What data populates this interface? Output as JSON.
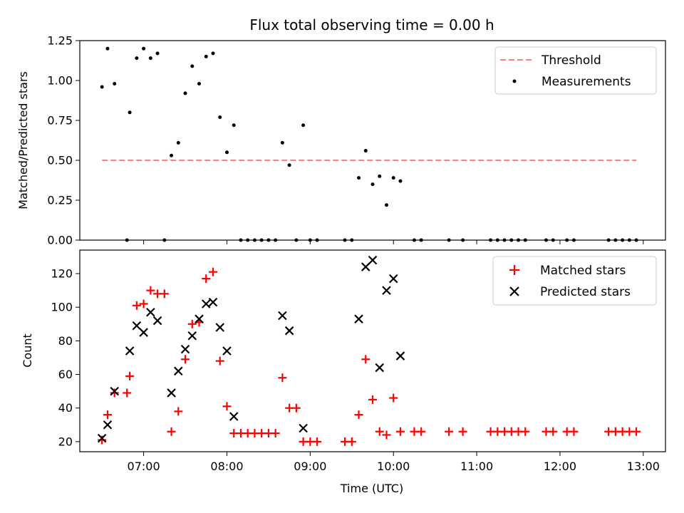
{
  "chart_data": [
    {
      "type": "scatter",
      "title": "Flux total observing time = 0.00 h",
      "xlabel": "",
      "ylabel": "Matched/Predicted stars",
      "ylim": [
        0,
        1.25
      ],
      "yticks": [
        "0.00",
        "0.25",
        "0.50",
        "0.75",
        "1.00",
        "1.25"
      ],
      "xlim": [
        "06:14",
        "13:16"
      ],
      "legend_position": "top-right",
      "threshold": {
        "name": "Threshold",
        "value": 0.5,
        "x_start": "06:30",
        "x_end": "12:55",
        "color": "#ff7f7f",
        "style": "dashed"
      },
      "series": [
        {
          "name": "Measurements",
          "color": "#000000",
          "marker": "dot",
          "points": [
            [
              "06:30",
              0.96
            ],
            [
              "06:34",
              1.2
            ],
            [
              "06:39",
              0.98
            ],
            [
              "06:48",
              0.0
            ],
            [
              "06:50",
              0.8
            ],
            [
              "06:55",
              1.14
            ],
            [
              "07:00",
              1.2
            ],
            [
              "07:05",
              1.14
            ],
            [
              "07:10",
              1.17
            ],
            [
              "07:15",
              0.0
            ],
            [
              "07:20",
              0.53
            ],
            [
              "07:25",
              0.61
            ],
            [
              "07:30",
              0.92
            ],
            [
              "07:35",
              1.09
            ],
            [
              "07:40",
              0.98
            ],
            [
              "07:45",
              1.15
            ],
            [
              "07:50",
              1.17
            ],
            [
              "07:55",
              0.77
            ],
            [
              "08:00",
              0.55
            ],
            [
              "08:05",
              0.72
            ],
            [
              "08:10",
              0.0
            ],
            [
              "08:15",
              0.0
            ],
            [
              "08:20",
              0.0
            ],
            [
              "08:25",
              0.0
            ],
            [
              "08:30",
              0.0
            ],
            [
              "08:35",
              0.0
            ],
            [
              "08:40",
              0.61
            ],
            [
              "08:45",
              0.47
            ],
            [
              "08:50",
              0.0
            ],
            [
              "08:55",
              0.72
            ],
            [
              "09:00",
              0.0
            ],
            [
              "09:05",
              0.0
            ],
            [
              "09:25",
              0.0
            ],
            [
              "09:30",
              0.0
            ],
            [
              "09:35",
              0.39
            ],
            [
              "09:40",
              0.56
            ],
            [
              "09:45",
              0.35
            ],
            [
              "09:50",
              0.4
            ],
            [
              "09:55",
              0.22
            ],
            [
              "10:00",
              0.39
            ],
            [
              "10:05",
              0.37
            ],
            [
              "10:15",
              0.0
            ],
            [
              "10:20",
              0.0
            ],
            [
              "10:40",
              0.0
            ],
            [
              "10:50",
              0.0
            ],
            [
              "11:10",
              0.0
            ],
            [
              "11:15",
              0.0
            ],
            [
              "11:20",
              0.0
            ],
            [
              "11:25",
              0.0
            ],
            [
              "11:30",
              0.0
            ],
            [
              "11:35",
              0.0
            ],
            [
              "11:50",
              0.0
            ],
            [
              "11:55",
              0.0
            ],
            [
              "12:05",
              0.0
            ],
            [
              "12:10",
              0.0
            ],
            [
              "12:35",
              0.0
            ],
            [
              "12:40",
              0.0
            ],
            [
              "12:45",
              0.0
            ],
            [
              "12:50",
              0.0
            ],
            [
              "12:55",
              0.0
            ]
          ]
        }
      ]
    },
    {
      "type": "scatter",
      "title": "",
      "xlabel": "Time (UTC)",
      "ylabel": "Count",
      "ylim": [
        14,
        134
      ],
      "yticks": [
        "20",
        "40",
        "60",
        "80",
        "100",
        "120"
      ],
      "xlim": [
        "06:14",
        "13:16"
      ],
      "xticks": [
        "07:00",
        "08:00",
        "09:00",
        "10:00",
        "11:00",
        "12:00",
        "13:00"
      ],
      "legend_position": "top-right",
      "series": [
        {
          "name": "Matched stars",
          "color": "#ff0000",
          "marker": "plus",
          "points": [
            [
              "06:30",
              21
            ],
            [
              "06:34",
              36
            ],
            [
              "06:39",
              49
            ],
            [
              "06:48",
              49
            ],
            [
              "06:50",
              59
            ],
            [
              "06:55",
              101
            ],
            [
              "07:00",
              102
            ],
            [
              "07:05",
              110
            ],
            [
              "07:10",
              108
            ],
            [
              "07:15",
              108
            ],
            [
              "07:20",
              26
            ],
            [
              "07:25",
              38
            ],
            [
              "07:30",
              69
            ],
            [
              "07:35",
              90
            ],
            [
              "07:40",
              91
            ],
            [
              "07:45",
              117
            ],
            [
              "07:50",
              121
            ],
            [
              "07:55",
              68
            ],
            [
              "08:00",
              41
            ],
            [
              "08:05",
              25
            ],
            [
              "08:10",
              25
            ],
            [
              "08:15",
              25
            ],
            [
              "08:20",
              25
            ],
            [
              "08:25",
              25
            ],
            [
              "08:30",
              25
            ],
            [
              "08:35",
              25
            ],
            [
              "08:40",
              58
            ],
            [
              "08:45",
              40
            ],
            [
              "08:50",
              40
            ],
            [
              "08:55",
              20
            ],
            [
              "09:00",
              20
            ],
            [
              "09:05",
              20
            ],
            [
              "09:25",
              20
            ],
            [
              "09:30",
              20
            ],
            [
              "09:35",
              36
            ],
            [
              "09:40",
              69
            ],
            [
              "09:45",
              45
            ],
            [
              "09:50",
              26
            ],
            [
              "09:55",
              24
            ],
            [
              "10:00",
              46
            ],
            [
              "10:05",
              26
            ],
            [
              "10:15",
              26
            ],
            [
              "10:20",
              26
            ],
            [
              "10:40",
              26
            ],
            [
              "10:50",
              26
            ],
            [
              "11:10",
              26
            ],
            [
              "11:15",
              26
            ],
            [
              "11:20",
              26
            ],
            [
              "11:25",
              26
            ],
            [
              "11:30",
              26
            ],
            [
              "11:35",
              26
            ],
            [
              "11:50",
              26
            ],
            [
              "11:55",
              26
            ],
            [
              "12:05",
              26
            ],
            [
              "12:10",
              26
            ],
            [
              "12:35",
              26
            ],
            [
              "12:40",
              26
            ],
            [
              "12:45",
              26
            ],
            [
              "12:50",
              26
            ],
            [
              "12:55",
              26
            ]
          ]
        },
        {
          "name": "Predicted stars",
          "color": "#000000",
          "marker": "x",
          "points": [
            [
              "06:30",
              22
            ],
            [
              "06:34",
              30
            ],
            [
              "06:39",
              50
            ],
            [
              "06:50",
              74
            ],
            [
              "06:55",
              89
            ],
            [
              "07:00",
              85
            ],
            [
              "07:05",
              97
            ],
            [
              "07:10",
              92
            ],
            [
              "07:20",
              49
            ],
            [
              "07:25",
              62
            ],
            [
              "07:30",
              75
            ],
            [
              "07:35",
              83
            ],
            [
              "07:40",
              93
            ],
            [
              "07:45",
              102
            ],
            [
              "07:50",
              103
            ],
            [
              "07:55",
              88
            ],
            [
              "08:00",
              74
            ],
            [
              "08:05",
              35
            ],
            [
              "08:40",
              95
            ],
            [
              "08:45",
              86
            ],
            [
              "08:55",
              28
            ],
            [
              "09:35",
              93
            ],
            [
              "09:40",
              124
            ],
            [
              "09:45",
              128
            ],
            [
              "09:50",
              64
            ],
            [
              "09:55",
              110
            ],
            [
              "10:00",
              117
            ],
            [
              "10:05",
              71
            ]
          ]
        }
      ]
    }
  ]
}
